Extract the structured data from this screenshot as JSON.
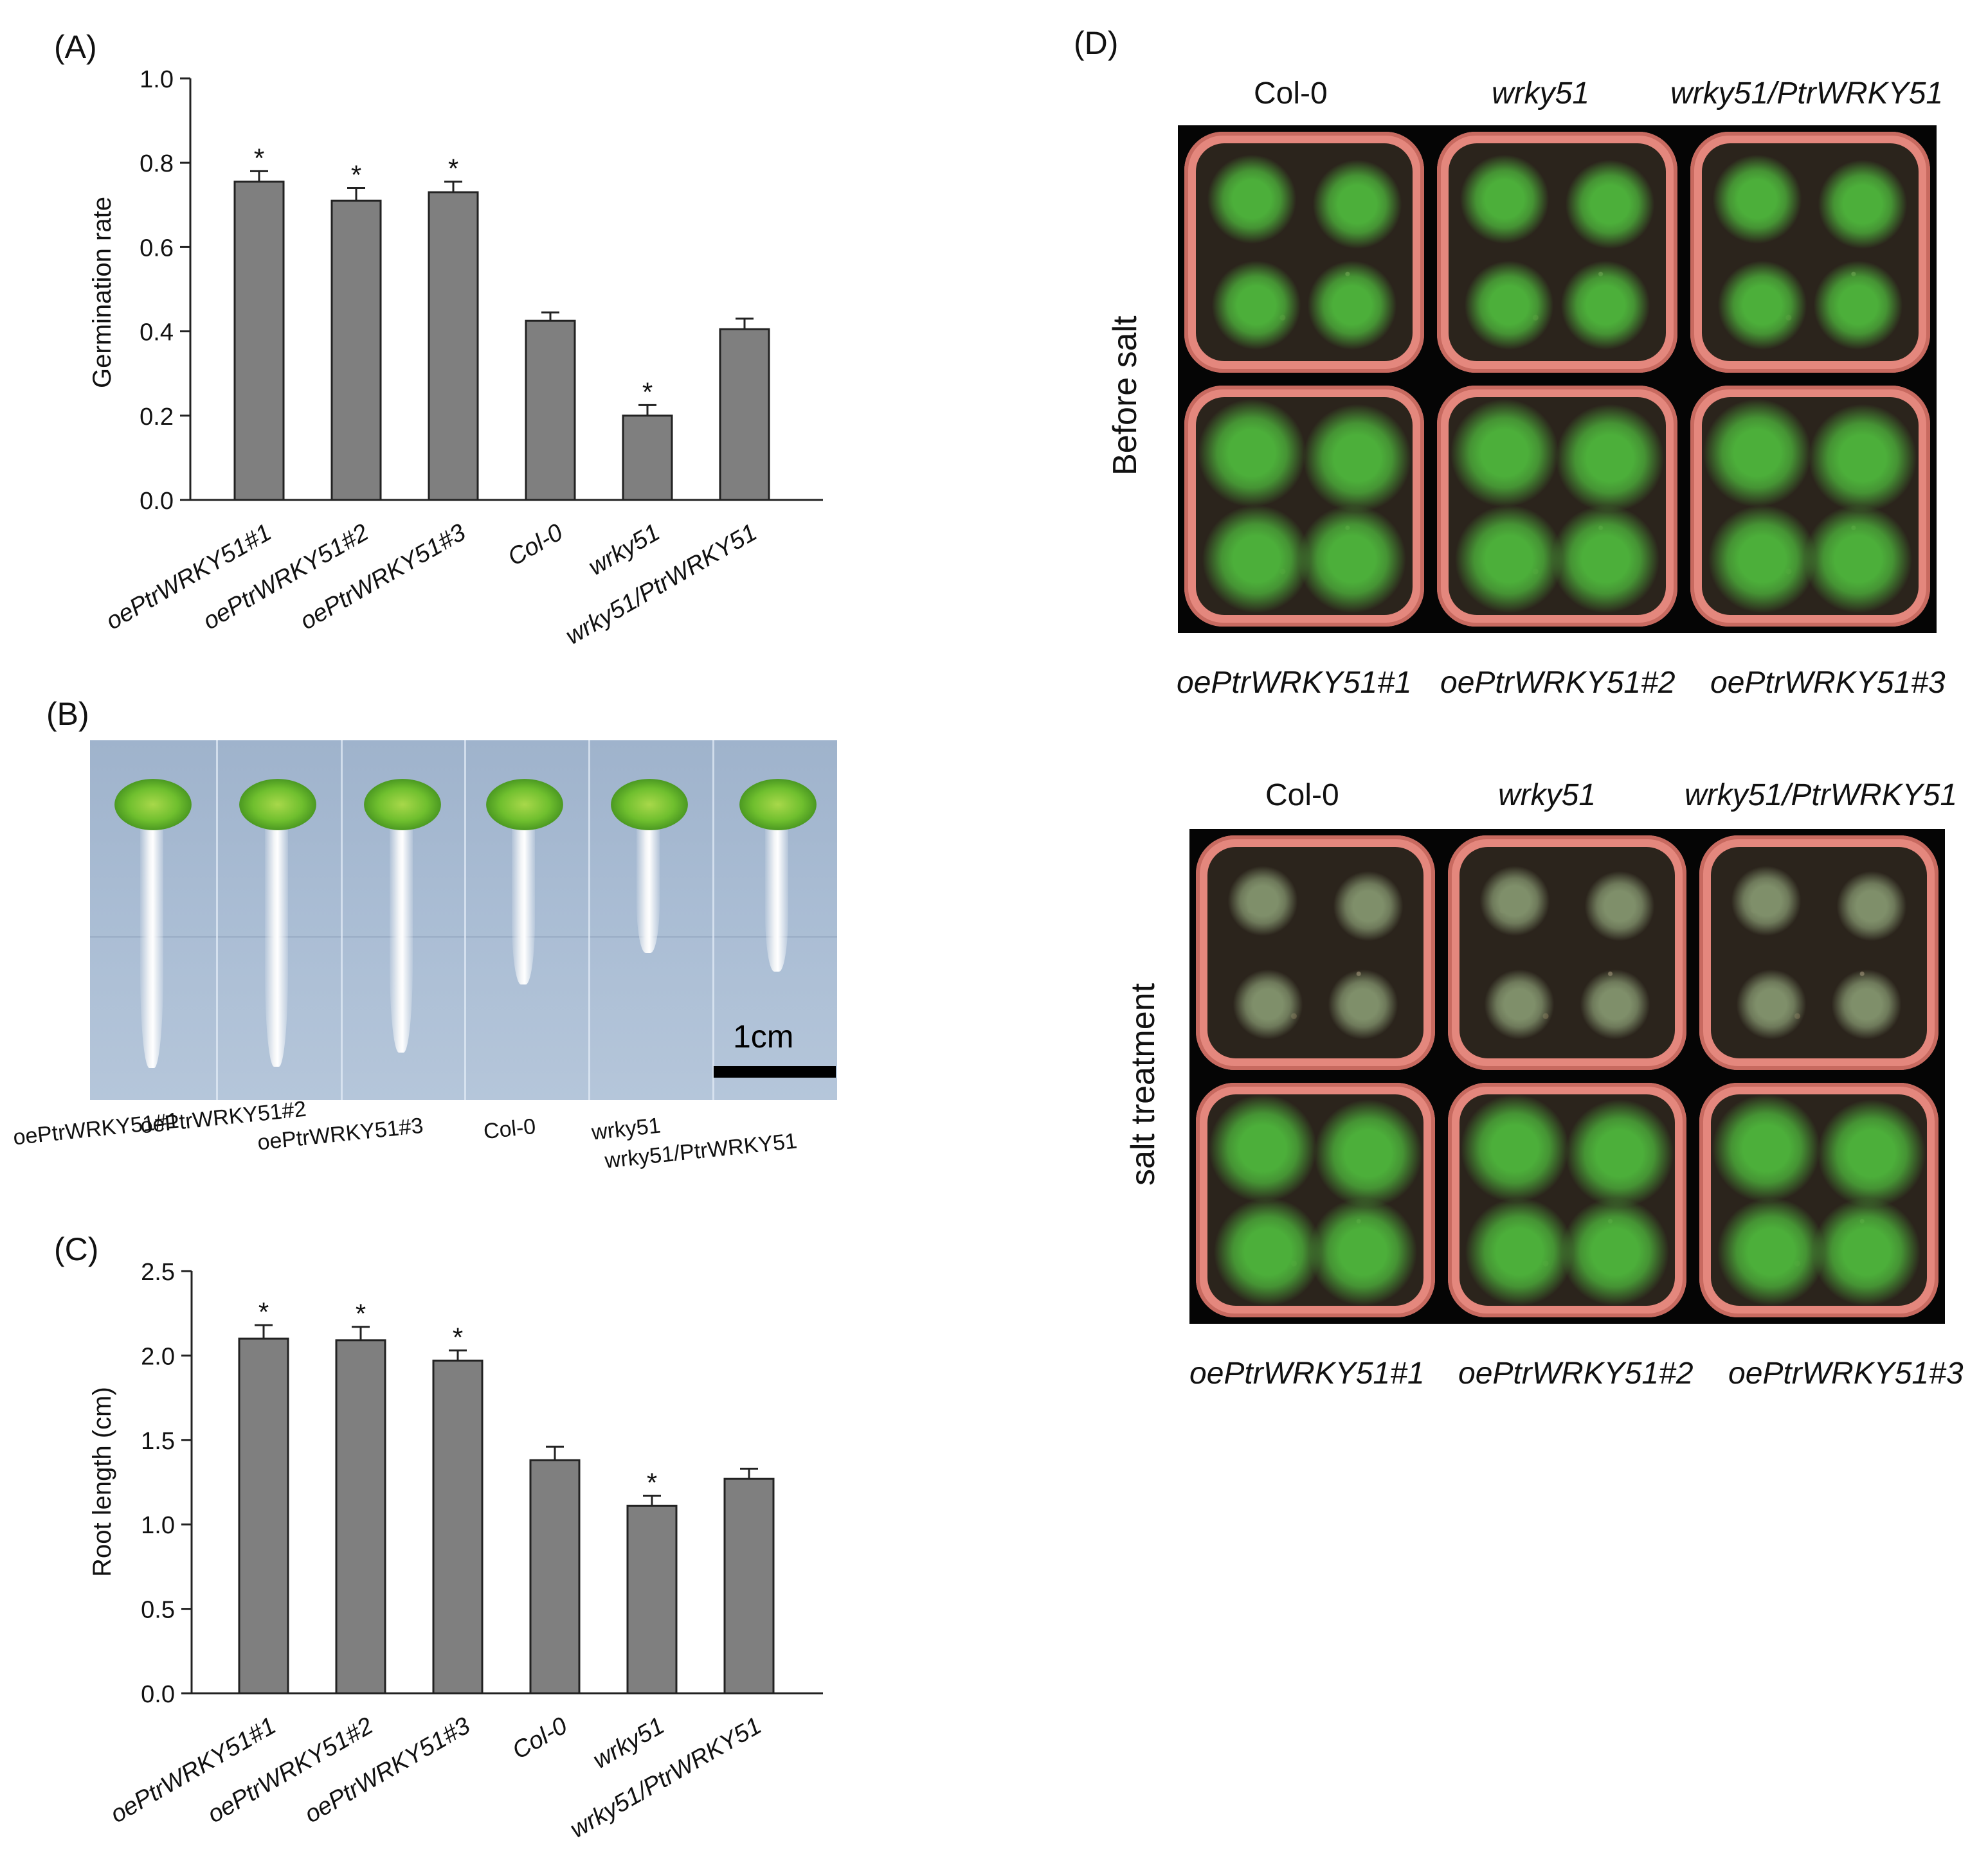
{
  "panels": {
    "A": "(A)",
    "B": "(B)",
    "C": "(C)",
    "D": "(D)"
  },
  "chart_data": [
    {
      "panel": "A",
      "type": "bar",
      "ylabel": "Germination rate",
      "xlabel": "",
      "ylim": [
        0,
        1.0
      ],
      "yticks": [
        "0.0",
        "0.2",
        "0.4",
        "0.6",
        "0.8",
        "1.0"
      ],
      "categories": [
        "oePtrWRKY51#1",
        "oePtrWRKY51#2",
        "oePtrWRKY51#3",
        "Col-0",
        "wrky51",
        "wrky51/PtrWRKY51"
      ],
      "values": [
        0.755,
        0.71,
        0.73,
        0.425,
        0.2,
        0.405
      ],
      "errors": [
        0.025,
        0.03,
        0.025,
        0.02,
        0.025,
        0.025
      ],
      "significance": [
        "*",
        "*",
        "*",
        "",
        "*",
        ""
      ],
      "bar_color": "#7f7f7f"
    },
    {
      "panel": "C",
      "type": "bar",
      "ylabel": "Root length (cm)",
      "xlabel": "",
      "ylim": [
        0,
        2.5
      ],
      "yticks": [
        "0.0",
        "0.5",
        "1.0",
        "1.5",
        "2.0",
        "2.5"
      ],
      "categories": [
        "oePtrWRKY51#1",
        "oePtrWRKY51#2",
        "oePtrWRKY51#3",
        "Col-0",
        "wrky51",
        "wrky51/PtrWRKY51"
      ],
      "values": [
        2.1,
        2.09,
        1.97,
        1.38,
        1.11,
        1.27
      ],
      "errors": [
        0.08,
        0.08,
        0.06,
        0.08,
        0.06,
        0.06
      ],
      "significance": [
        "*",
        "*",
        "*",
        "",
        "*",
        ""
      ],
      "bar_color": "#7f7f7f"
    }
  ],
  "panel_b": {
    "scale_label": "1cm",
    "labels": [
      "oePtrWRKY51#1",
      "oePtrWRKY51#2",
      "oePtrWRKY51#3",
      "Col-0",
      "wrky51",
      "wrky51/PtrWRKY51"
    ],
    "root_lengths": [
      2.1,
      2.09,
      1.97,
      1.38,
      1.11,
      1.27
    ]
  },
  "panel_d": {
    "row_labels": [
      "Before salt",
      "salt treatment"
    ],
    "top_labels": [
      "Col-0",
      "wrky51",
      "wrky51/PtrWRKY51"
    ],
    "bottom_labels": [
      "oePtrWRKY51#1",
      "oePtrWRKY51#2",
      "oePtrWRKY51#3"
    ],
    "colors": {
      "pot": "#e4877d",
      "healthy": "#4caf3a",
      "wilted": "#7f8f6a",
      "background": "#050505"
    }
  }
}
